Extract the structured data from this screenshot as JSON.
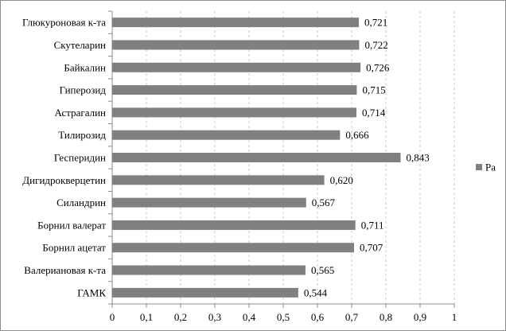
{
  "chart_data": {
    "type": "bar",
    "orientation": "horizontal",
    "title": "",
    "xlabel": "",
    "ylabel": "",
    "xlim": [
      0,
      1
    ],
    "x_ticks": [
      "0",
      "0,1",
      "0,2",
      "0,3",
      "0,4",
      "0,5",
      "0,6",
      "0,7",
      "0,8",
      "0,9",
      "1"
    ],
    "grid": "vertical dashed",
    "legend_position": "right",
    "bar_color": "#808080",
    "categories": [
      "Глюкуроновая к-та",
      "Скутеларин",
      "Байкалин",
      "Гиперозид",
      "Астрагалин",
      "Тилирозид",
      "Гесперидин",
      "Дигидрокверцетин",
      "Силандрин",
      "Борнил валерат",
      "Борнил ацетат",
      "Валериановая к-та",
      "ГАМК"
    ],
    "series": [
      {
        "name": "Pa",
        "values": [
          0.721,
          0.722,
          0.726,
          0.715,
          0.714,
          0.666,
          0.843,
          0.62,
          0.567,
          0.711,
          0.707,
          0.565,
          0.544
        ],
        "labels": [
          "0,721",
          "0,722",
          "0,726",
          "0,715",
          "0,714",
          "0,666",
          "0,843",
          "0,620",
          "0,567",
          "0,711",
          "0,707",
          "0,565",
          "0,544"
        ]
      }
    ]
  }
}
